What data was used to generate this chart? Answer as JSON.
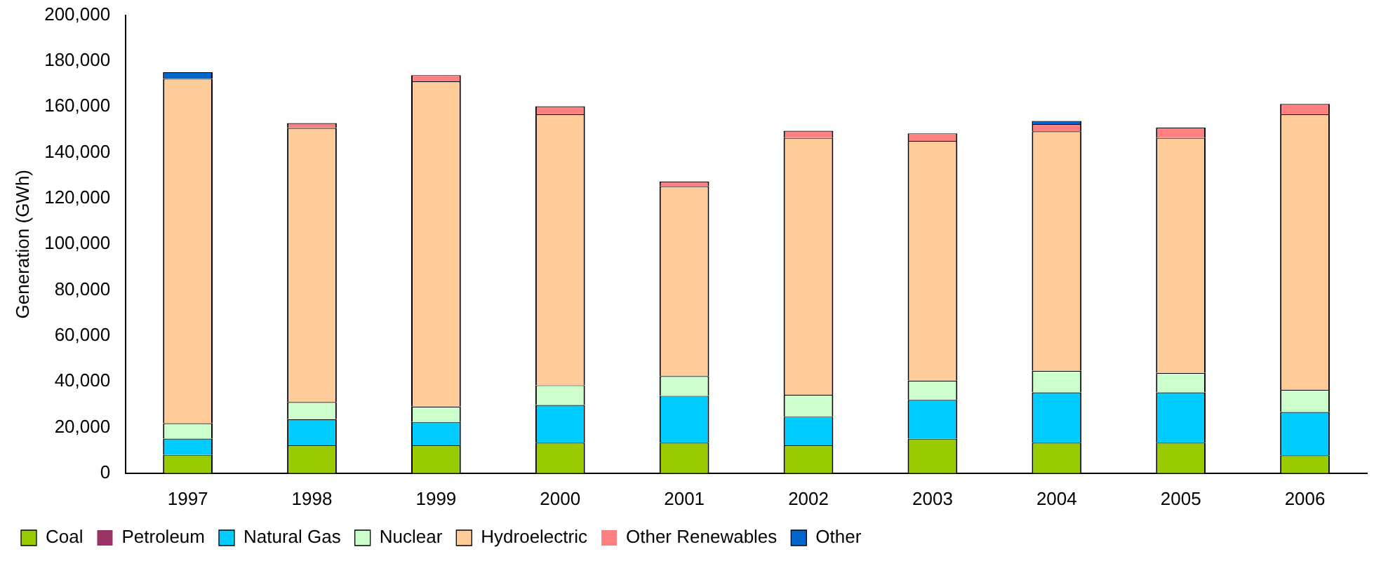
{
  "chart_data": {
    "type": "bar",
    "stacked": true,
    "ylabel": "Generation (GWh)",
    "categories": [
      "1997",
      "1998",
      "1999",
      "2000",
      "2001",
      "2002",
      "2003",
      "2004",
      "2005",
      "2006"
    ],
    "series": [
      {
        "name": "Coal",
        "color": "#99cc00",
        "values": [
          8000,
          12200,
          12200,
          13300,
          13300,
          12200,
          15100,
          13300,
          13300,
          7800
        ]
      },
      {
        "name": "Petroleum",
        "color": "#993366",
        "values": [
          0,
          0,
          0,
          0,
          0,
          0,
          0,
          0,
          0,
          0
        ]
      },
      {
        "name": "Natural Gas",
        "color": "#00ccff",
        "values": [
          7100,
          11400,
          10200,
          16500,
          20500,
          12500,
          16900,
          22000,
          22000,
          18900
        ]
      },
      {
        "name": "Nuclear",
        "color": "#ccffcc",
        "values": [
          6700,
          7500,
          6700,
          8600,
          8600,
          9500,
          8400,
          9400,
          8500,
          9700
        ]
      },
      {
        "name": "Hydroelectric",
        "color": "#ffcc99",
        "values": [
          150400,
          119600,
          142000,
          118300,
          82900,
          112200,
          104700,
          104600,
          102600,
          120300
        ]
      },
      {
        "name": "Other Renewables",
        "color": "#ff8080",
        "values": [
          0,
          2200,
          2700,
          3500,
          2000,
          3100,
          3300,
          3100,
          4500,
          4500
        ]
      },
      {
        "name": "Other",
        "color": "#0066cc",
        "values": [
          2900,
          0,
          0,
          0,
          0,
          0,
          0,
          1400,
          0,
          0
        ]
      }
    ],
    "ylim": [
      0,
      200000
    ],
    "yticks": [
      {
        "value": 0,
        "label": "0"
      },
      {
        "value": 20000,
        "label": "20,000"
      },
      {
        "value": 40000,
        "label": "40,000"
      },
      {
        "value": 60000,
        "label": "60,000"
      },
      {
        "value": 80000,
        "label": "80,000"
      },
      {
        "value": 100000,
        "label": "100,000"
      },
      {
        "value": 120000,
        "label": "120,000"
      },
      {
        "value": 140000,
        "label": "140,000"
      },
      {
        "value": 160000,
        "label": "160,000"
      },
      {
        "value": 180000,
        "label": "180,000"
      },
      {
        "value": 200000,
        "label": "200,000"
      }
    ],
    "grid": false,
    "legend": "bottom"
  }
}
